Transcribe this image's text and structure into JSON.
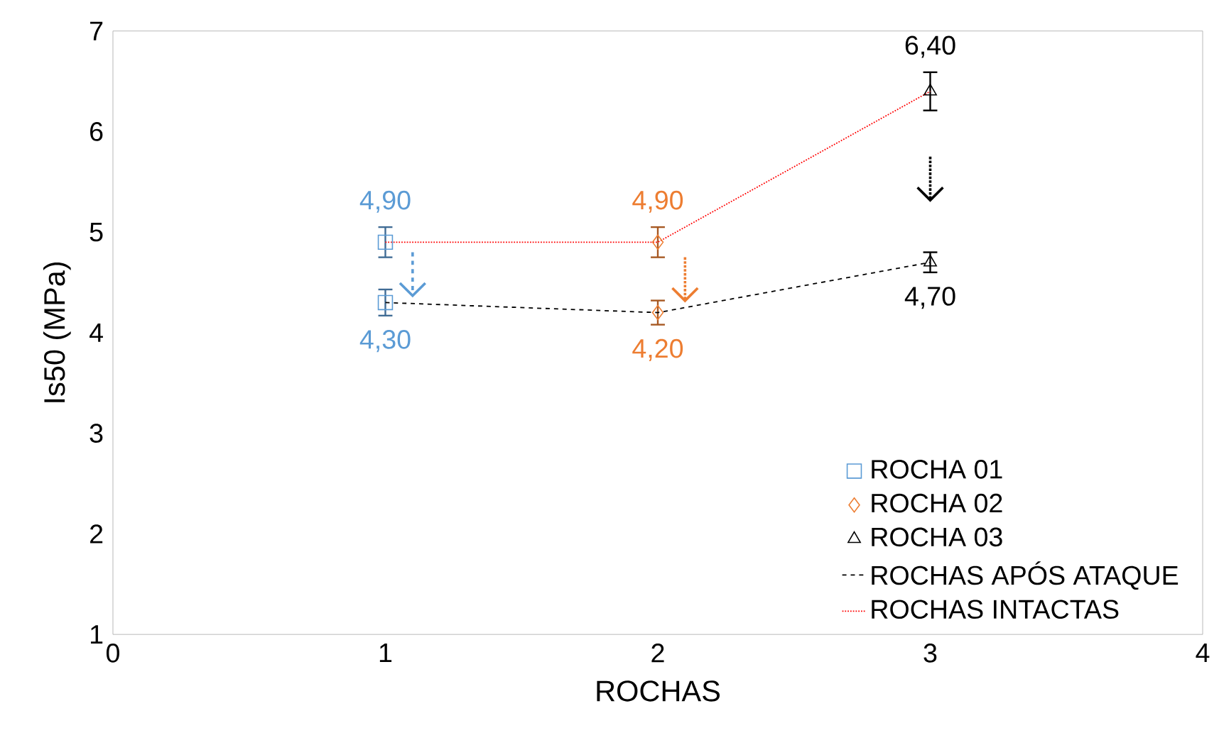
{
  "chart_data": {
    "type": "scatter",
    "xlabel": "ROCHAS",
    "ylabel": "Is50 (MPa)",
    "xlim": [
      0,
      4
    ],
    "xticks": [
      0,
      1,
      2,
      3,
      4
    ],
    "ylim": [
      1,
      7
    ],
    "yticks": [
      1,
      2,
      3,
      4,
      5,
      6,
      7
    ],
    "legend": "bottom right",
    "grid": false,
    "series": [
      {
        "name": "ROCHA 01",
        "marker": "square",
        "color": "#5b9bd5",
        "x": [
          1,
          1
        ],
        "values": [
          4.9,
          4.3
        ],
        "errors": [
          0.15,
          0.13
        ],
        "value_labels": [
          "4,90",
          "4,30"
        ]
      },
      {
        "name": "ROCHA 02",
        "marker": "diamond",
        "color": "#ed7d31",
        "x": [
          2,
          2
        ],
        "values": [
          4.9,
          4.2
        ],
        "errors": [
          0.15,
          0.12
        ],
        "value_labels": [
          "4,90",
          "4,20"
        ]
      },
      {
        "name": "ROCHA 03",
        "marker": "triangle",
        "color": "#000000",
        "x": [
          3,
          3
        ],
        "values": [
          6.4,
          4.7
        ],
        "errors": [
          0.19,
          0.1
        ],
        "value_labels": [
          "6,40",
          "4,70"
        ]
      },
      {
        "name": "ROCHAS APÓS ATAQUE",
        "type": "line",
        "marker": "none",
        "line_style": "dashed",
        "color": "#000000",
        "x": [
          1,
          2,
          3
        ],
        "values": [
          4.3,
          4.2,
          4.7
        ]
      },
      {
        "name": "ROCHAS INTACTAS",
        "type": "line",
        "marker": "none",
        "line_style": "dotted",
        "color": "#ff0000",
        "x": [
          1,
          2,
          3
        ],
        "values": [
          4.9,
          4.9,
          6.4
        ]
      }
    ]
  }
}
